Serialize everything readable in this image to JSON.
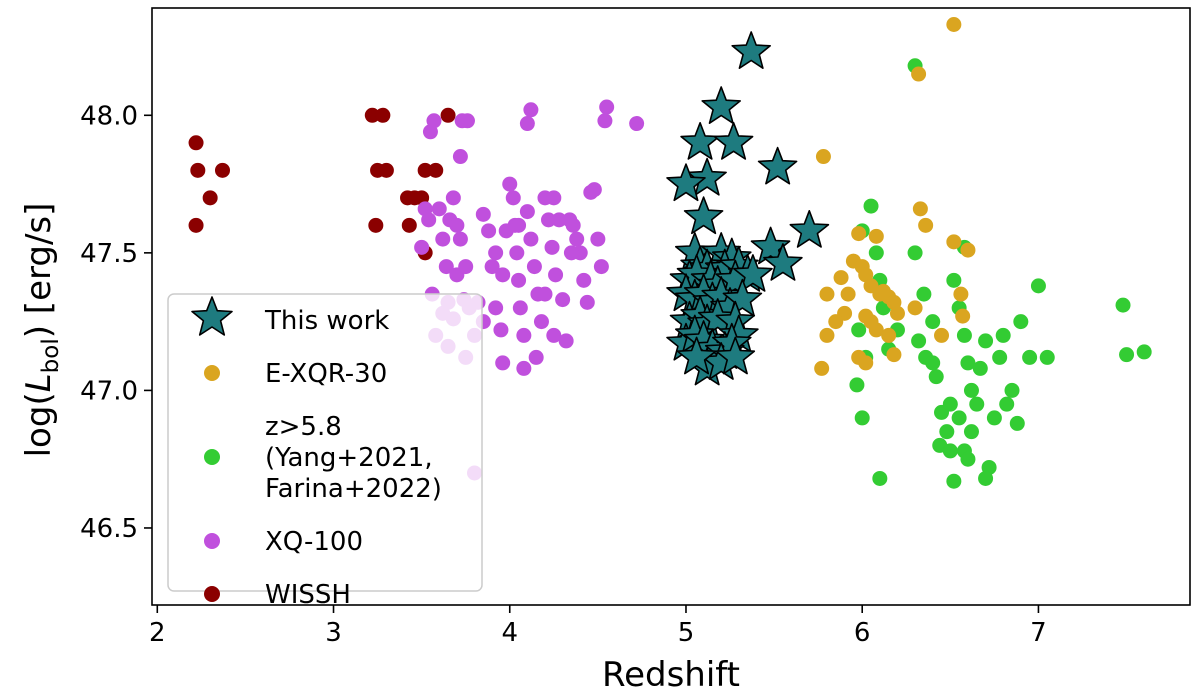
{
  "chart_data": {
    "type": "scatter",
    "title": "",
    "xlabel": "Redshift",
    "ylabel_prefix": "log(",
    "ylabel_var": "L",
    "ylabel_sub": "bol",
    "ylabel_suffix": ") [erg/s]",
    "xlim": [
      1.97,
      7.86
    ],
    "ylim": [
      46.22,
      48.39
    ],
    "xticks": [
      2,
      3,
      4,
      5,
      6,
      7
    ],
    "xtick_labels": [
      "2",
      "3",
      "4",
      "5",
      "6",
      "7"
    ],
    "yticks": [
      46.5,
      47.0,
      47.5,
      48.0
    ],
    "ytick_labels": [
      "46.5",
      "47.0",
      "47.5",
      "48.0"
    ],
    "grid": false,
    "legend_position": "lower-left",
    "series": [
      {
        "name": "WISSH",
        "legend_lines": [
          "WISSH"
        ],
        "color": "#8b0000",
        "marker": "circle",
        "points": [
          [
            2.22,
            47.9
          ],
          [
            2.23,
            47.8
          ],
          [
            2.22,
            47.6
          ],
          [
            2.3,
            47.7
          ],
          [
            2.37,
            47.8
          ],
          [
            3.22,
            48.0
          ],
          [
            3.28,
            48.0
          ],
          [
            3.25,
            47.8
          ],
          [
            3.3,
            47.8
          ],
          [
            3.24,
            47.6
          ],
          [
            3.42,
            47.7
          ],
          [
            3.46,
            47.7
          ],
          [
            3.5,
            47.7
          ],
          [
            3.52,
            47.8
          ],
          [
            3.58,
            47.8
          ],
          [
            3.43,
            47.6
          ],
          [
            3.52,
            47.5
          ],
          [
            3.65,
            48.0
          ]
        ]
      },
      {
        "name": "XQ-100",
        "legend_lines": [
          "XQ-100"
        ],
        "color": "#c050dd",
        "marker": "circle",
        "points": [
          [
            3.55,
            47.94
          ],
          [
            3.57,
            47.98
          ],
          [
            3.73,
            47.98
          ],
          [
            3.76,
            47.98
          ],
          [
            3.72,
            47.85
          ],
          [
            3.5,
            47.52
          ],
          [
            3.52,
            47.66
          ],
          [
            3.54,
            47.62
          ],
          [
            3.56,
            47.35
          ],
          [
            3.6,
            47.66
          ],
          [
            3.62,
            47.55
          ],
          [
            3.64,
            47.45
          ],
          [
            3.66,
            47.62
          ],
          [
            3.68,
            47.7
          ],
          [
            3.7,
            47.6
          ],
          [
            3.7,
            47.42
          ],
          [
            3.72,
            47.55
          ],
          [
            3.74,
            47.33
          ],
          [
            3.75,
            47.45
          ],
          [
            3.77,
            47.3
          ],
          [
            3.8,
            47.2
          ],
          [
            3.82,
            47.32
          ],
          [
            3.65,
            47.32
          ],
          [
            3.68,
            47.26
          ],
          [
            3.75,
            47.12
          ],
          [
            3.85,
            47.64
          ],
          [
            3.88,
            47.58
          ],
          [
            3.9,
            47.45
          ],
          [
            3.92,
            47.3
          ],
          [
            3.95,
            47.22
          ],
          [
            3.96,
            47.42
          ],
          [
            3.98,
            47.58
          ],
          [
            4.0,
            47.75
          ],
          [
            4.02,
            47.7
          ],
          [
            4.03,
            47.6
          ],
          [
            4.04,
            47.5
          ],
          [
            4.05,
            47.4
          ],
          [
            4.06,
            47.3
          ],
          [
            4.08,
            47.2
          ],
          [
            4.1,
            47.97
          ],
          [
            4.12,
            48.02
          ],
          [
            4.1,
            47.65
          ],
          [
            4.12,
            47.55
          ],
          [
            4.14,
            47.45
          ],
          [
            4.16,
            47.35
          ],
          [
            4.18,
            47.25
          ],
          [
            4.2,
            47.7
          ],
          [
            4.22,
            47.62
          ],
          [
            4.24,
            47.52
          ],
          [
            4.26,
            47.42
          ],
          [
            4.28,
            47.62
          ],
          [
            4.3,
            47.33
          ],
          [
            4.32,
            47.18
          ],
          [
            4.34,
            47.62
          ],
          [
            4.36,
            47.6
          ],
          [
            4.38,
            47.55
          ],
          [
            4.4,
            47.5
          ],
          [
            4.42,
            47.4
          ],
          [
            4.44,
            47.32
          ],
          [
            4.46,
            47.72
          ],
          [
            4.48,
            47.73
          ],
          [
            4.5,
            47.55
          ],
          [
            4.52,
            47.45
          ],
          [
            4.54,
            47.98
          ],
          [
            4.55,
            48.03
          ],
          [
            4.72,
            47.97
          ],
          [
            3.96,
            47.1
          ],
          [
            4.08,
            47.08
          ],
          [
            3.8,
            46.7
          ],
          [
            3.85,
            47.25
          ],
          [
            4.15,
            47.12
          ],
          [
            4.25,
            47.2
          ],
          [
            3.58,
            47.2
          ],
          [
            3.62,
            47.28
          ],
          [
            3.65,
            47.16
          ],
          [
            4.05,
            47.6
          ],
          [
            4.25,
            47.7
          ],
          [
            4.35,
            47.5
          ],
          [
            4.2,
            47.35
          ],
          [
            3.92,
            47.5
          ]
        ]
      },
      {
        "name": "z>5.8 (Yang+2021, Farina+2022)",
        "legend_lines": [
          "z>5.8",
          "(Yang+2021,",
          "Farina+2022)"
        ],
        "color": "#33cc33",
        "marker": "circle",
        "points": [
          [
            6.3,
            48.18
          ],
          [
            6.05,
            47.67
          ],
          [
            6.0,
            47.58
          ],
          [
            6.08,
            47.5
          ],
          [
            6.1,
            47.4
          ],
          [
            6.12,
            47.3
          ],
          [
            5.98,
            47.22
          ],
          [
            6.02,
            47.12
          ],
          [
            5.97,
            47.02
          ],
          [
            6.0,
            46.9
          ],
          [
            6.1,
            46.68
          ],
          [
            6.3,
            47.5
          ],
          [
            6.35,
            47.35
          ],
          [
            6.4,
            47.25
          ],
          [
            6.32,
            47.18
          ],
          [
            6.36,
            47.12
          ],
          [
            6.42,
            47.05
          ],
          [
            6.45,
            46.92
          ],
          [
            6.48,
            46.85
          ],
          [
            6.44,
            46.8
          ],
          [
            6.5,
            46.95
          ],
          [
            6.52,
            47.4
          ],
          [
            6.55,
            47.3
          ],
          [
            6.58,
            47.2
          ],
          [
            6.6,
            47.1
          ],
          [
            6.62,
            47.0
          ],
          [
            6.55,
            46.9
          ],
          [
            6.58,
            46.78
          ],
          [
            6.6,
            46.75
          ],
          [
            6.62,
            46.85
          ],
          [
            6.65,
            46.95
          ],
          [
            6.67,
            47.08
          ],
          [
            6.7,
            47.18
          ],
          [
            6.72,
            46.72
          ],
          [
            6.7,
            46.68
          ],
          [
            6.75,
            46.9
          ],
          [
            6.78,
            47.12
          ],
          [
            6.8,
            47.2
          ],
          [
            6.82,
            46.95
          ],
          [
            6.85,
            47.0
          ],
          [
            6.88,
            46.88
          ],
          [
            6.9,
            47.25
          ],
          [
            6.95,
            47.12
          ],
          [
            7.0,
            47.38
          ],
          [
            7.05,
            47.12
          ],
          [
            7.48,
            47.31
          ],
          [
            7.5,
            47.13
          ],
          [
            7.6,
            47.14
          ],
          [
            6.52,
            46.67
          ],
          [
            6.4,
            47.1
          ],
          [
            6.2,
            47.22
          ],
          [
            6.15,
            47.15
          ],
          [
            6.58,
            47.52
          ],
          [
            6.5,
            46.78
          ]
        ]
      },
      {
        "name": "E-XQR-30",
        "legend_lines": [
          "E-XQR-30"
        ],
        "color": "#daa520",
        "marker": "circle",
        "points": [
          [
            6.52,
            48.33
          ],
          [
            6.32,
            48.15
          ],
          [
            5.78,
            47.85
          ],
          [
            6.33,
            47.66
          ],
          [
            6.36,
            47.6
          ],
          [
            5.98,
            47.57
          ],
          [
            6.08,
            47.56
          ],
          [
            6.52,
            47.54
          ],
          [
            6.6,
            47.51
          ],
          [
            5.95,
            47.47
          ],
          [
            6.0,
            47.45
          ],
          [
            6.02,
            47.42
          ],
          [
            5.88,
            47.41
          ],
          [
            5.92,
            47.35
          ],
          [
            5.8,
            47.35
          ],
          [
            6.05,
            47.38
          ],
          [
            6.12,
            47.36
          ],
          [
            6.15,
            47.34
          ],
          [
            6.18,
            47.32
          ],
          [
            6.56,
            47.35
          ],
          [
            5.9,
            47.28
          ],
          [
            5.85,
            47.25
          ],
          [
            6.02,
            47.27
          ],
          [
            6.05,
            47.25
          ],
          [
            6.08,
            47.22
          ],
          [
            5.8,
            47.2
          ],
          [
            6.3,
            47.3
          ],
          [
            6.15,
            47.2
          ],
          [
            5.98,
            47.12
          ],
          [
            6.02,
            47.1
          ],
          [
            6.18,
            47.13
          ],
          [
            6.45,
            47.2
          ],
          [
            6.57,
            47.27
          ],
          [
            5.77,
            47.08
          ],
          [
            6.1,
            47.35
          ],
          [
            6.2,
            47.28
          ]
        ]
      },
      {
        "name": "This work",
        "legend_lines": [
          "This work"
        ],
        "color": "#1e7b7f",
        "marker": "star",
        "points": [
          [
            5.37,
            48.23
          ],
          [
            5.2,
            48.03
          ],
          [
            5.08,
            47.9
          ],
          [
            5.27,
            47.9
          ],
          [
            5.52,
            47.81
          ],
          [
            5.12,
            47.77
          ],
          [
            5.0,
            47.75
          ],
          [
            5.1,
            47.63
          ],
          [
            5.7,
            47.58
          ],
          [
            5.05,
            47.5
          ],
          [
            5.2,
            47.5
          ],
          [
            5.48,
            47.52
          ],
          [
            5.26,
            47.48
          ],
          [
            5.55,
            47.46
          ],
          [
            5.08,
            47.45
          ],
          [
            5.12,
            47.44
          ],
          [
            5.22,
            47.44
          ],
          [
            5.3,
            47.45
          ],
          [
            5.35,
            47.42
          ],
          [
            5.02,
            47.4
          ],
          [
            5.06,
            47.42
          ],
          [
            5.14,
            47.4
          ],
          [
            5.18,
            47.38
          ],
          [
            5.28,
            47.4
          ],
          [
            5.38,
            47.42
          ],
          [
            5.0,
            47.35
          ],
          [
            5.05,
            47.33
          ],
          [
            5.1,
            47.35
          ],
          [
            5.15,
            47.32
          ],
          [
            5.2,
            47.34
          ],
          [
            5.25,
            47.3
          ],
          [
            5.32,
            47.33
          ],
          [
            5.02,
            47.25
          ],
          [
            5.08,
            47.27
          ],
          [
            5.12,
            47.24
          ],
          [
            5.18,
            47.26
          ],
          [
            5.28,
            47.25
          ],
          [
            5.3,
            47.2
          ],
          [
            5.0,
            47.17
          ],
          [
            5.05,
            47.2
          ],
          [
            5.1,
            47.18
          ],
          [
            5.15,
            47.15
          ],
          [
            5.22,
            47.14
          ],
          [
            5.26,
            47.17
          ],
          [
            5.12,
            47.08
          ],
          [
            5.2,
            47.1
          ],
          [
            5.28,
            47.12
          ],
          [
            5.06,
            47.12
          ]
        ]
      }
    ],
    "legend_order": [
      "This work",
      "E-XQR-30",
      "z>5.8 (Yang+2021, Farina+2022)",
      "XQ-100",
      "WISSH"
    ]
  }
}
